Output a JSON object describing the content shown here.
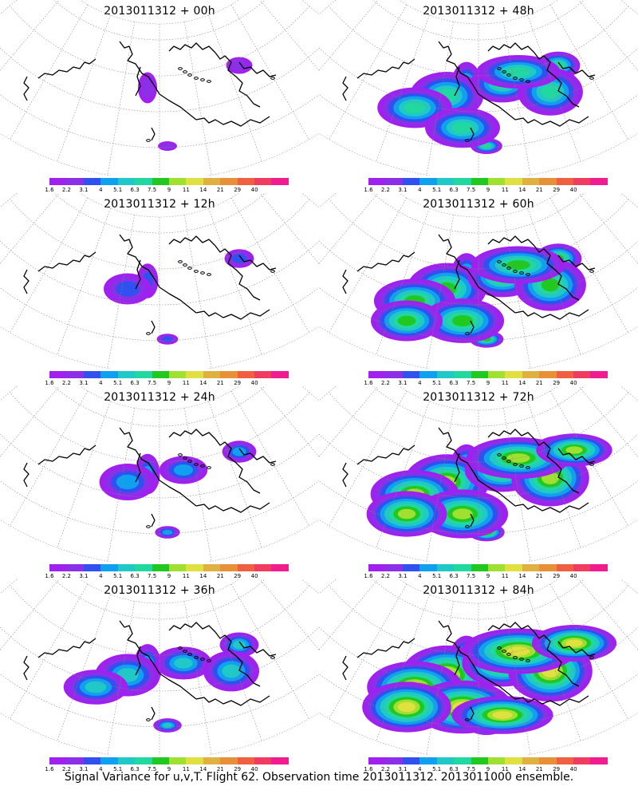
{
  "palette": [
    "#a020f0",
    "#8c30e8",
    "#3050f0",
    "#10a0f0",
    "#20c8c8",
    "#20d8a0",
    "#20c820",
    "#a0e030",
    "#e0e040",
    "#e0b040",
    "#e89038",
    "#f06040",
    "#f03c60",
    "#f01c90"
  ],
  "scale_labels": [
    "1.6",
    "2.2",
    "3.1",
    "4",
    "5.1",
    "6.3",
    "7.5",
    "9",
    "11",
    "14",
    "21",
    "29",
    "40"
  ],
  "panels": [
    {
      "title": "2013011312 + 00h",
      "intensity": 0.0
    },
    {
      "title": "2013011312 + 48h",
      "intensity": 0.55
    },
    {
      "title": "2013011312 + 12h",
      "intensity": 0.1
    },
    {
      "title": "2013011312 + 60h",
      "intensity": 0.65
    },
    {
      "title": "2013011312 + 24h",
      "intensity": 0.25
    },
    {
      "title": "2013011312 + 72h",
      "intensity": 0.75
    },
    {
      "title": "2013011312 + 36h",
      "intensity": 0.4
    },
    {
      "title": "2013011312 + 84h",
      "intensity": 0.85
    }
  ],
  "caption": "Signal Variance for u,v,T. Flight 62. Observation time 2013011312. 2013011000 ensemble."
}
